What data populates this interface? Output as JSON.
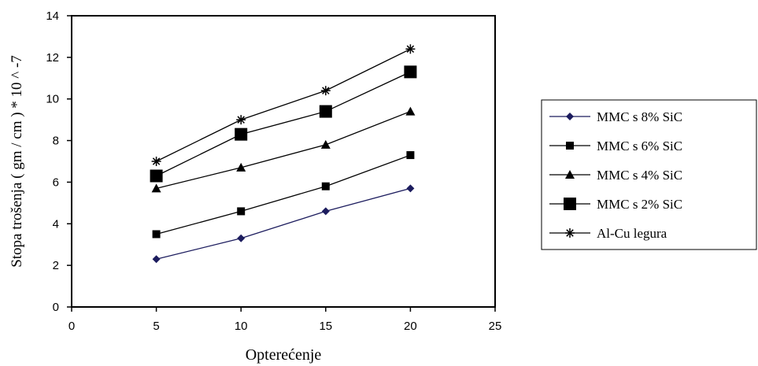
{
  "chart_data": {
    "type": "line",
    "xlabel": "Opterećenje",
    "ylabel": "Stopa trošenja  ( gm / cm ) * 10 ^ -7",
    "xlim": [
      0,
      25
    ],
    "ylim": [
      0,
      14
    ],
    "xticks": [
      0,
      5,
      10,
      15,
      20,
      25
    ],
    "yticks": [
      0,
      2,
      4,
      6,
      8,
      10,
      12,
      14
    ],
    "grid": false,
    "legend_position": "right",
    "x": [
      5,
      10,
      15,
      20
    ],
    "series": [
      {
        "name": "MMC s 8% SiC",
        "values": [
          2.3,
          3.3,
          4.6,
          5.7
        ],
        "marker": "diamond",
        "color": "#1c1c5e"
      },
      {
        "name": "MMC s 6% SiC",
        "values": [
          3.5,
          4.6,
          5.8,
          7.3
        ],
        "marker": "square-small",
        "color": "#000000"
      },
      {
        "name": "MMC s 4% SiC",
        "values": [
          5.7,
          6.7,
          7.8,
          9.4
        ],
        "marker": "triangle",
        "color": "#000000"
      },
      {
        "name": "MMC s 2% SiC",
        "values": [
          6.3,
          8.3,
          9.4,
          11.3
        ],
        "marker": "square-large",
        "color": "#000000"
      },
      {
        "name": "Al-Cu legura",
        "values": [
          7.0,
          9.0,
          10.4,
          12.4
        ],
        "marker": "star",
        "color": "#000000"
      }
    ]
  }
}
